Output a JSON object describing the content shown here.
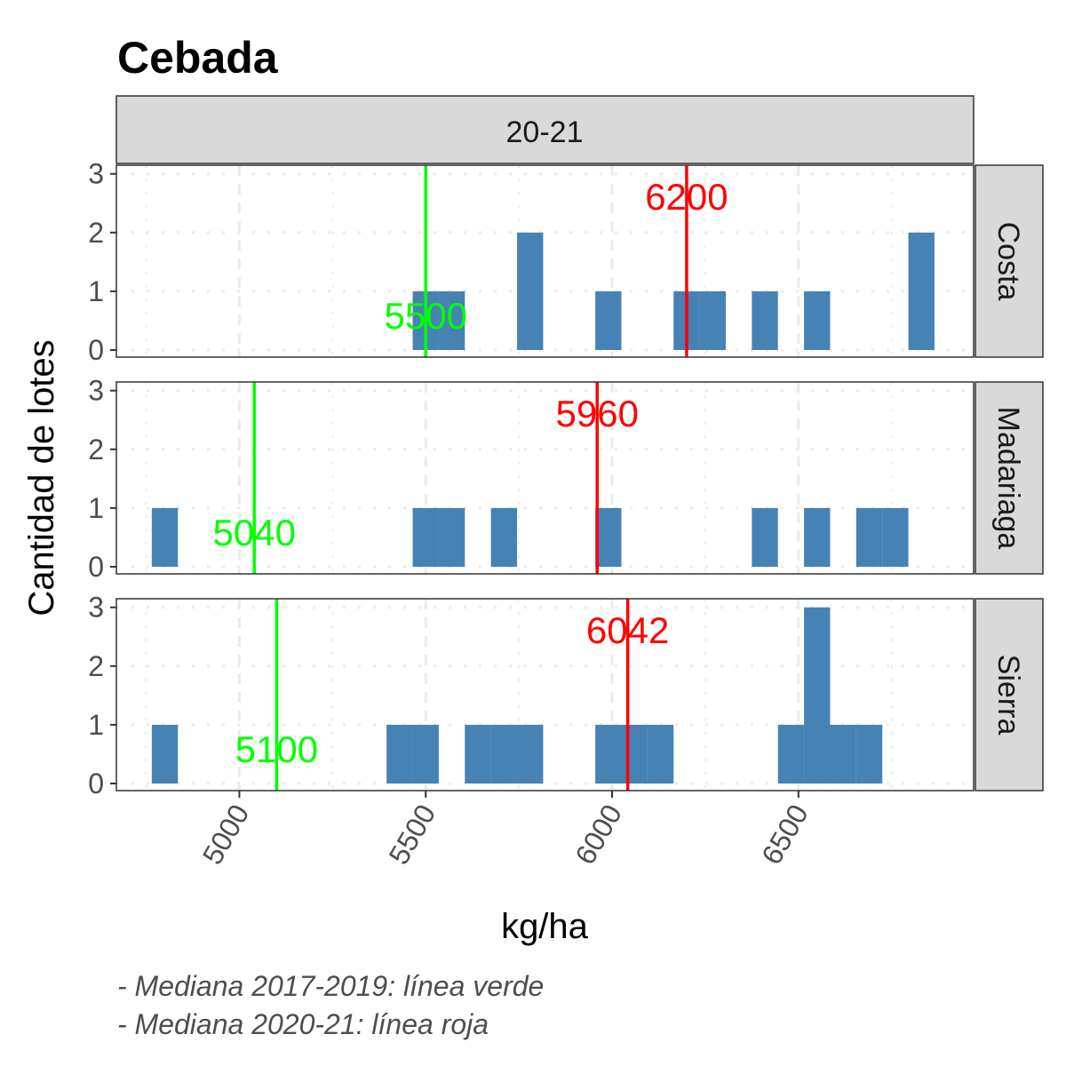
{
  "chart_data": {
    "type": "bar",
    "title": "Cebada",
    "xlabel": "kg/ha",
    "ylabel": "Cantidad de lotes",
    "column_strip": "20-21",
    "xlim": [
      4670,
      6970
    ],
    "ylim": [
      0,
      3
    ],
    "x_ticks": [
      "5000",
      "5500",
      "6000",
      "6500"
    ],
    "y_ticks": [
      "0",
      "1",
      "2",
      "3"
    ],
    "bin_width": 70,
    "bar_color": "#4682B4",
    "median_old_color": "#00FF00",
    "median_new_color": "#FF0000",
    "grid": true,
    "caption": [
      "- Mediana 2017-2019: línea verde",
      "- Mediana 2020-21: línea roja"
    ],
    "panels": [
      {
        "name": "Costa",
        "bins": [
          {
            "x": 5500,
            "count": 1
          },
          {
            "x": 5570,
            "count": 1
          },
          {
            "x": 5780,
            "count": 2
          },
          {
            "x": 5990,
            "count": 1
          },
          {
            "x": 6200,
            "count": 1
          },
          {
            "x": 6270,
            "count": 1
          },
          {
            "x": 6410,
            "count": 1
          },
          {
            "x": 6550,
            "count": 1
          },
          {
            "x": 6830,
            "count": 2
          }
        ],
        "median_2017_2019": 5500,
        "median_2017_2019_label": "5500",
        "median_2020_21": 6200,
        "median_2020_21_label": "6200"
      },
      {
        "name": "Madariaga",
        "bins": [
          {
            "x": 4800,
            "count": 1
          },
          {
            "x": 5500,
            "count": 1
          },
          {
            "x": 5570,
            "count": 1
          },
          {
            "x": 5710,
            "count": 1
          },
          {
            "x": 5990,
            "count": 1
          },
          {
            "x": 6410,
            "count": 1
          },
          {
            "x": 6550,
            "count": 1
          },
          {
            "x": 6690,
            "count": 1
          },
          {
            "x": 6760,
            "count": 1
          }
        ],
        "median_2017_2019": 5040,
        "median_2017_2019_label": "5040",
        "median_2020_21": 5960,
        "median_2020_21_label": "5960"
      },
      {
        "name": "Sierra",
        "bins": [
          {
            "x": 4800,
            "count": 1
          },
          {
            "x": 5430,
            "count": 1
          },
          {
            "x": 5500,
            "count": 1
          },
          {
            "x": 5640,
            "count": 1
          },
          {
            "x": 5710,
            "count": 1
          },
          {
            "x": 5780,
            "count": 1
          },
          {
            "x": 5990,
            "count": 1
          },
          {
            "x": 6060,
            "count": 1
          },
          {
            "x": 6130,
            "count": 1
          },
          {
            "x": 6480,
            "count": 1
          },
          {
            "x": 6550,
            "count": 3
          },
          {
            "x": 6620,
            "count": 1
          },
          {
            "x": 6690,
            "count": 1
          }
        ],
        "median_2017_2019": 5100,
        "median_2017_2019_label": "5100",
        "median_2020_21": 6042,
        "median_2020_21_label": "6042"
      }
    ]
  }
}
